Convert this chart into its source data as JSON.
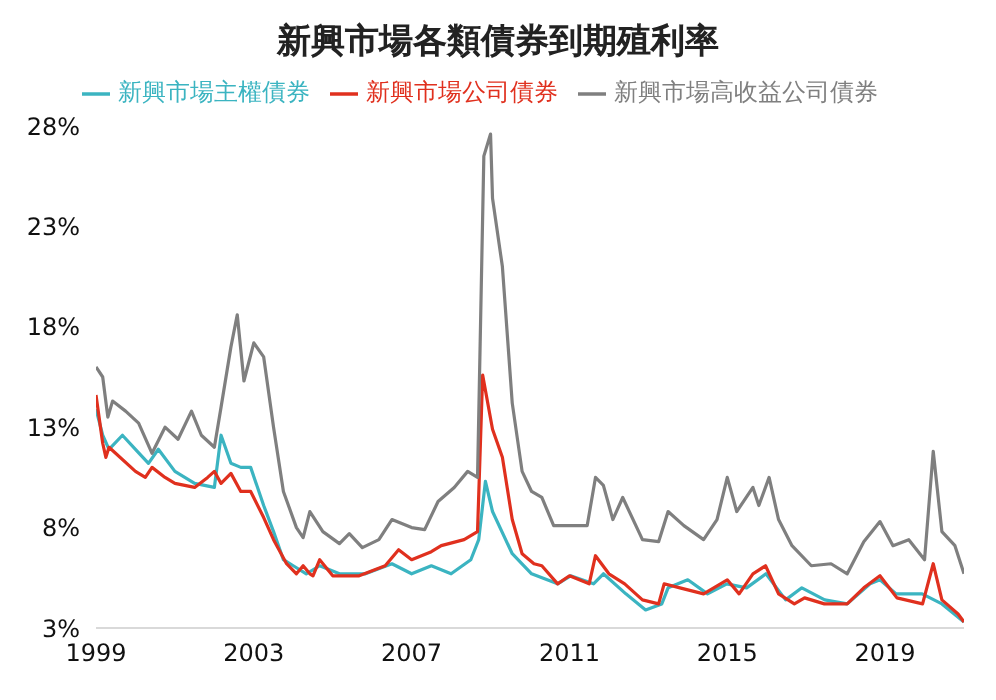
{
  "chart_data": {
    "type": "line",
    "title": "新興市場各類債券到期殖利率",
    "legend": "top",
    "grid": false,
    "marker": "none",
    "line_style": "solid",
    "xlim": [
      1999,
      2021
    ],
    "xticks": [
      1999,
      2003,
      2007,
      2011,
      2015,
      2019
    ],
    "ylim": [
      3,
      28
    ],
    "yticks": [
      {
        "value": 3,
        "label": "3%"
      },
      {
        "value": 8,
        "label": "8%"
      },
      {
        "value": 13,
        "label": "13%"
      },
      {
        "value": 18,
        "label": "18%"
      },
      {
        "value": 23,
        "label": "23%"
      },
      {
        "value": 28,
        "label": "28%"
      }
    ],
    "series": [
      {
        "name": "新興市場主權債券",
        "color": "#3bb4c1",
        "x": [
          1999.0,
          1999.17,
          1999.33,
          1999.67,
          2000.0,
          2000.33,
          2000.58,
          2001.0,
          2001.5,
          2002.0,
          2002.17,
          2002.42,
          2002.67,
          2002.92,
          2003.25,
          2003.5,
          2003.75,
          2004.0,
          2004.33,
          2004.67,
          2005.17,
          2005.83,
          2006.5,
          2007.0,
          2007.5,
          2008.0,
          2008.5,
          2008.7,
          2008.87,
          2009.05,
          2009.55,
          2010.04,
          2010.7,
          2011.03,
          2011.61,
          2011.86,
          2012.43,
          2012.93,
          2013.34,
          2013.5,
          2014.0,
          2014.5,
          2014.99,
          2015.49,
          2015.98,
          2016.48,
          2016.89,
          2017.47,
          2018.04,
          2018.62,
          2018.87,
          2019.28,
          2019.94,
          2020.44,
          2021.0
        ],
        "values": [
          13.9,
          12.6,
          11.9,
          12.6,
          11.9,
          11.2,
          11.9,
          10.8,
          10.2,
          10.0,
          12.6,
          11.2,
          11.0,
          11.0,
          9.1,
          7.8,
          6.4,
          6.1,
          5.7,
          6.1,
          5.7,
          5.7,
          6.2,
          5.7,
          6.1,
          5.7,
          6.4,
          7.4,
          10.3,
          8.8,
          6.7,
          5.7,
          5.2,
          5.6,
          5.2,
          5.7,
          4.7,
          3.9,
          4.2,
          5.0,
          5.4,
          4.7,
          5.2,
          5.0,
          5.7,
          4.4,
          5.0,
          4.4,
          4.2,
          5.2,
          5.4,
          4.7,
          4.7,
          4.2,
          3.3
        ]
      },
      {
        "name": "新興市場公司債券",
        "color": "#e0301e",
        "x": [
          1999.0,
          1999.17,
          1999.25,
          1999.33,
          2000.0,
          2000.25,
          2000.42,
          2000.75,
          2001.0,
          2001.5,
          2001.83,
          2002.0,
          2002.17,
          2002.42,
          2002.67,
          2002.92,
          2003.25,
          2003.5,
          2003.83,
          2004.08,
          2004.25,
          2004.42,
          2004.5,
          2004.67,
          2005.0,
          2005.67,
          2006.33,
          2006.67,
          2007.0,
          2007.5,
          2007.75,
          2008.33,
          2008.67,
          2008.8,
          2009.05,
          2009.3,
          2009.55,
          2009.8,
          2010.1,
          2010.3,
          2010.7,
          2011.0,
          2011.5,
          2011.66,
          2012.0,
          2012.4,
          2012.85,
          2013.26,
          2013.4,
          2013.8,
          2014.4,
          2015.0,
          2015.3,
          2015.65,
          2015.97,
          2016.3,
          2016.7,
          2016.96,
          2017.46,
          2018.04,
          2018.46,
          2018.87,
          2019.3,
          2019.95,
          2020.22,
          2020.44,
          2020.85,
          2021.0
        ],
        "values": [
          14.6,
          12.2,
          11.5,
          12.0,
          10.8,
          10.5,
          11.0,
          10.5,
          10.2,
          10.0,
          10.5,
          10.8,
          10.2,
          10.7,
          9.8,
          9.8,
          8.5,
          7.4,
          6.2,
          5.7,
          6.1,
          5.7,
          5.6,
          6.4,
          5.6,
          5.6,
          6.1,
          6.9,
          6.4,
          6.8,
          7.1,
          7.4,
          7.8,
          15.6,
          12.9,
          11.5,
          8.4,
          6.7,
          6.2,
          6.1,
          5.2,
          5.6,
          5.2,
          6.6,
          5.7,
          5.2,
          4.4,
          4.2,
          5.2,
          5.0,
          4.7,
          5.4,
          4.7,
          5.7,
          6.1,
          4.7,
          4.2,
          4.5,
          4.2,
          4.2,
          5.0,
          5.6,
          4.5,
          4.2,
          6.2,
          4.4,
          3.7,
          3.3
        ]
      },
      {
        "name": "新興市場高收益公司債券",
        "color": "#7f7f7f",
        "x": [
          1999.0,
          1999.17,
          1999.3,
          1999.42,
          1999.75,
          2000.08,
          2000.42,
          2000.75,
          2001.08,
          2001.42,
          2001.67,
          2002.0,
          2002.17,
          2002.42,
          2002.58,
          2002.75,
          2003.0,
          2003.25,
          2003.5,
          2003.75,
          2004.08,
          2004.25,
          2004.42,
          2004.75,
          2005.17,
          2005.42,
          2005.75,
          2006.17,
          2006.5,
          2007.0,
          2007.33,
          2007.67,
          2008.08,
          2008.42,
          2008.67,
          2008.83,
          2009.0,
          2009.05,
          2009.3,
          2009.55,
          2009.8,
          2010.04,
          2010.3,
          2010.6,
          2011.0,
          2011.45,
          2011.66,
          2011.86,
          2012.1,
          2012.35,
          2012.85,
          2013.26,
          2013.5,
          2013.9,
          2014.4,
          2014.74,
          2015.0,
          2015.24,
          2015.65,
          2015.8,
          2016.06,
          2016.3,
          2016.64,
          2017.13,
          2017.63,
          2018.04,
          2018.46,
          2018.87,
          2019.2,
          2019.6,
          2020.0,
          2020.22,
          2020.44,
          2020.77,
          2021.0
        ],
        "values": [
          16.0,
          15.5,
          13.5,
          14.3,
          13.8,
          13.2,
          11.7,
          13.0,
          12.4,
          13.8,
          12.6,
          12.0,
          14.0,
          17.0,
          18.6,
          15.3,
          17.2,
          16.5,
          13.0,
          9.8,
          8.0,
          7.5,
          8.8,
          7.8,
          7.2,
          7.7,
          7.0,
          7.4,
          8.4,
          8.0,
          7.9,
          9.3,
          10.0,
          10.8,
          10.5,
          26.5,
          27.6,
          24.4,
          21.0,
          14.2,
          10.8,
          9.8,
          9.5,
          8.1,
          8.1,
          8.1,
          10.5,
          10.1,
          8.4,
          9.5,
          7.4,
          7.3,
          8.8,
          8.1,
          7.4,
          8.4,
          10.5,
          8.8,
          10.0,
          9.1,
          10.5,
          8.4,
          7.1,
          6.1,
          6.2,
          5.7,
          7.3,
          8.3,
          7.1,
          7.4,
          6.4,
          11.8,
          7.8,
          7.1,
          5.7
        ]
      }
    ]
  }
}
